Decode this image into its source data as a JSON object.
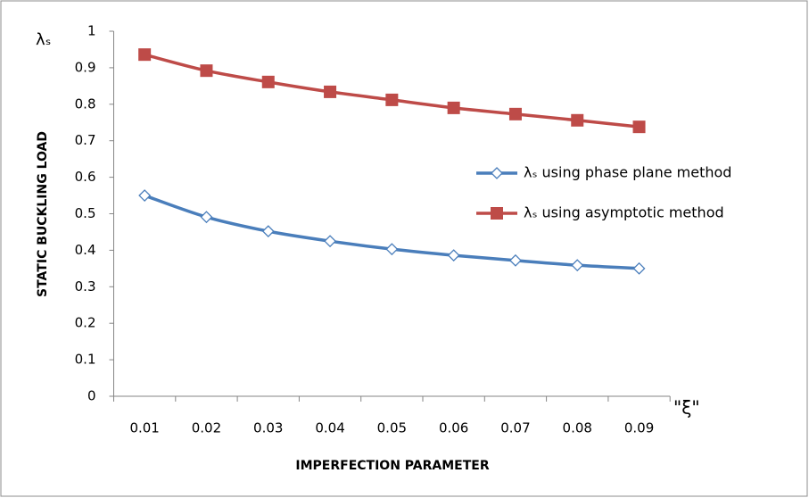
{
  "chart_data": {
    "type": "line",
    "x_axis_title": "IMPERFECTION PARAMETER",
    "y_axis_title": "STATIC BUCKLING LOAD",
    "y_symbol": "λₛ",
    "x_symbol": "\"ξ\"",
    "categories": [
      "0.01",
      "0.02",
      "0.03",
      "0.04",
      "0.05",
      "0.06",
      "0.07",
      "0.08",
      "0.09"
    ],
    "series": [
      {
        "name": "λₛ using phase plane method",
        "color": "#4a7ebb",
        "marker": "diamond",
        "values": [
          0.55,
          0.491,
          0.452,
          0.425,
          0.403,
          0.386,
          0.372,
          0.359,
          0.35
        ]
      },
      {
        "name": "λₛ using asymptotic method",
        "color": "#be4b48",
        "marker": "square",
        "values": [
          0.936,
          0.892,
          0.861,
          0.834,
          0.812,
          0.79,
          0.773,
          0.756,
          0.738
        ]
      }
    ],
    "ylim": [
      0,
      1
    ],
    "yticks": [
      0,
      0.1,
      0.2,
      0.3,
      0.4,
      0.5,
      0.6,
      0.7,
      0.8,
      0.9,
      1
    ],
    "smooth": true,
    "legend_position": "right"
  }
}
